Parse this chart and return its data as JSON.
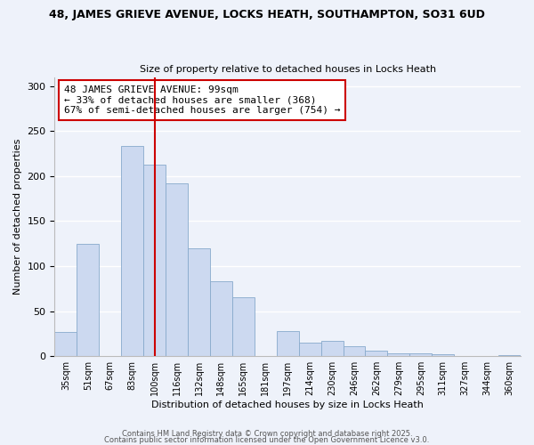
{
  "title": "48, JAMES GRIEVE AVENUE, LOCKS HEATH, SOUTHAMPTON, SO31 6UD",
  "subtitle": "Size of property relative to detached houses in Locks Heath",
  "xlabel": "Distribution of detached houses by size in Locks Heath",
  "ylabel": "Number of detached properties",
  "bar_color": "#ccd9f0",
  "bar_edge_color": "#88aacc",
  "categories": [
    "35sqm",
    "51sqm",
    "67sqm",
    "83sqm",
    "100sqm",
    "116sqm",
    "132sqm",
    "148sqm",
    "165sqm",
    "181sqm",
    "197sqm",
    "214sqm",
    "230sqm",
    "246sqm",
    "262sqm",
    "279sqm",
    "295sqm",
    "311sqm",
    "327sqm",
    "344sqm",
    "360sqm"
  ],
  "values": [
    27,
    125,
    0,
    233,
    213,
    192,
    120,
    83,
    65,
    0,
    28,
    15,
    17,
    11,
    6,
    3,
    3,
    2,
    0,
    0,
    1
  ],
  "vline_x_index": 4,
  "vline_color": "#cc0000",
  "annotation_text": "48 JAMES GRIEVE AVENUE: 99sqm\n← 33% of detached houses are smaller (368)\n67% of semi-detached houses are larger (754) →",
  "annotation_box_color": "#ffffff",
  "annotation_box_edge": "#cc0000",
  "ylim": [
    0,
    310
  ],
  "yticks": [
    0,
    50,
    100,
    150,
    200,
    250,
    300
  ],
  "footer1": "Contains HM Land Registry data © Crown copyright and database right 2025.",
  "footer2": "Contains public sector information licensed under the Open Government Licence v3.0.",
  "background_color": "#eef2fa",
  "grid_color": "#ffffff"
}
